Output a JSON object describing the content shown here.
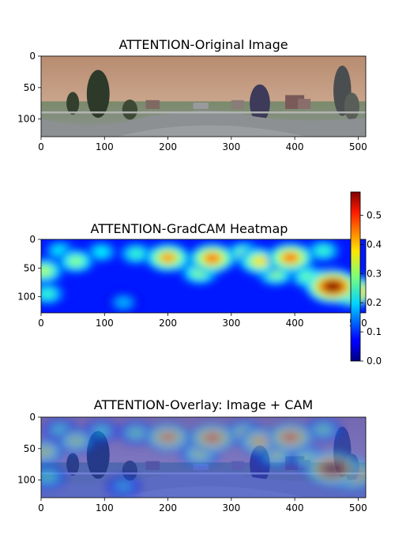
{
  "chart_data": [
    {
      "type": "image",
      "title": "ATTENTION-Original Image",
      "xlabel": "",
      "ylabel": "",
      "xlim": [
        0,
        512
      ],
      "ylim": [
        128,
        0
      ],
      "x_ticks": [
        0,
        100,
        200,
        300,
        400,
        500
      ],
      "y_ticks": [
        0,
        50,
        100
      ],
      "content": "street panorama"
    },
    {
      "type": "heatmap",
      "title": "ATTENTION-GradCAM Heatmap",
      "xlabel": "",
      "ylabel": "",
      "xlim": [
        0,
        512
      ],
      "ylim": [
        128,
        0
      ],
      "x_ticks": [
        0,
        100,
        200,
        300,
        400,
        500
      ],
      "y_ticks": [
        0,
        50,
        100
      ],
      "colormap": "jet",
      "colorbar": {
        "min": 0.0,
        "max": 0.58,
        "ticks": [
          "0.0",
          "0.1",
          "0.2",
          "0.3",
          "0.4",
          "0.5"
        ]
      },
      "hotspots": [
        {
          "x": 55,
          "y": 38,
          "value": 0.3
        },
        {
          "x": 95,
          "y": 22,
          "value": 0.22
        },
        {
          "x": 150,
          "y": 25,
          "value": 0.25
        },
        {
          "x": 200,
          "y": 32,
          "value": 0.42
        },
        {
          "x": 250,
          "y": 58,
          "value": 0.3
        },
        {
          "x": 270,
          "y": 33,
          "value": 0.45
        },
        {
          "x": 320,
          "y": 25,
          "value": 0.3
        },
        {
          "x": 345,
          "y": 38,
          "value": 0.38
        },
        {
          "x": 370,
          "y": 60,
          "value": 0.3
        },
        {
          "x": 393,
          "y": 32,
          "value": 0.45
        },
        {
          "x": 445,
          "y": 20,
          "value": 0.25
        },
        {
          "x": 460,
          "y": 82,
          "value": 0.58
        },
        {
          "x": 490,
          "y": 90,
          "value": 0.5
        },
        {
          "x": 5,
          "y": 55,
          "value": 0.32
        },
        {
          "x": 10,
          "y": 95,
          "value": 0.25
        },
        {
          "x": 130,
          "y": 110,
          "value": 0.18
        },
        {
          "x": 420,
          "y": 65,
          "value": 0.28
        },
        {
          "x": 30,
          "y": 20,
          "value": 0.22
        }
      ]
    },
    {
      "type": "image",
      "title": "ATTENTION-Overlay: Image + CAM",
      "xlabel": "",
      "ylabel": "",
      "xlim": [
        0,
        512
      ],
      "ylim": [
        128,
        0
      ],
      "x_ticks": [
        0,
        100,
        200,
        300,
        400,
        500
      ],
      "y_ticks": [
        0,
        50,
        100
      ],
      "content": "street panorama overlaid with jet heatmap"
    }
  ]
}
